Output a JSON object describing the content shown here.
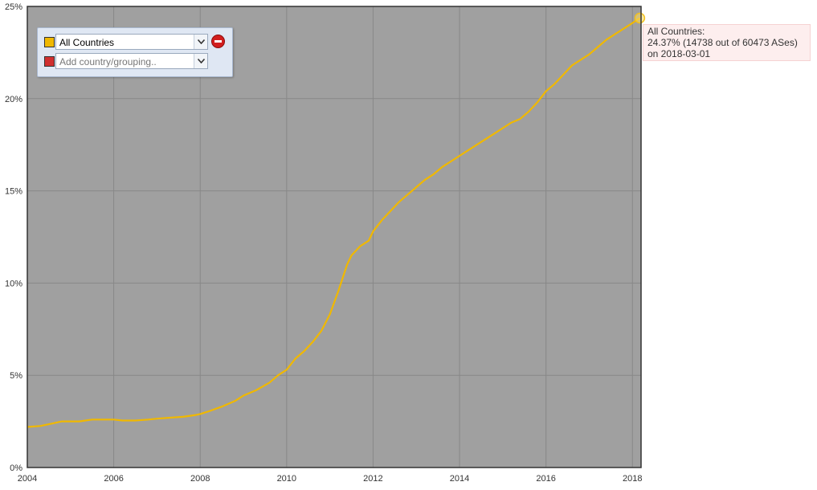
{
  "chart_data": {
    "type": "line",
    "title": "",
    "xlabel": "",
    "ylabel": "",
    "xlim": [
      2004.0,
      2018.2
    ],
    "ylim": [
      0,
      25
    ],
    "x_ticks": [
      2004,
      2006,
      2008,
      2010,
      2012,
      2014,
      2016,
      2018
    ],
    "x_tick_labels": [
      "2004",
      "2006",
      "2008",
      "2010",
      "2012",
      "2014",
      "2016",
      "2018"
    ],
    "y_ticks": [
      0,
      5,
      10,
      15,
      20,
      25
    ],
    "y_tick_labels": [
      "0%",
      "5%",
      "10%",
      "15%",
      "20%",
      "25%"
    ],
    "grid": true,
    "series": [
      {
        "color": "#f0b800",
        "x": [
          2004.0,
          2004.3,
          2004.6,
          2004.8,
          2005.0,
          2005.2,
          2005.5,
          2005.7,
          2006.0,
          2006.2,
          2006.5,
          2006.8,
          2007.0,
          2007.3,
          2007.6,
          2007.9,
          2008.0,
          2008.2,
          2008.5,
          2008.8,
          2009.0,
          2009.3,
          2009.6,
          2009.8,
          2010.0,
          2010.2,
          2010.4,
          2010.6,
          2010.8,
          2011.0,
          2011.2,
          2011.4,
          2011.5,
          2011.7,
          2011.9,
          2012.0,
          2012.2,
          2012.4,
          2012.6,
          2012.8,
          2013.0,
          2013.2,
          2013.4,
          2013.6,
          2013.8,
          2014.0,
          2014.2,
          2014.4,
          2014.6,
          2014.8,
          2015.0,
          2015.2,
          2015.4,
          2015.6,
          2015.8,
          2016.0,
          2016.2,
          2016.4,
          2016.6,
          2016.8,
          2017.0,
          2017.2,
          2017.4,
          2017.6,
          2017.8,
          2018.0,
          2018.17
        ],
        "y": [
          2.2,
          2.25,
          2.4,
          2.5,
          2.5,
          2.5,
          2.6,
          2.6,
          2.6,
          2.55,
          2.55,
          2.6,
          2.65,
          2.7,
          2.75,
          2.85,
          2.9,
          3.05,
          3.3,
          3.6,
          3.9,
          4.2,
          4.6,
          5.0,
          5.3,
          5.9,
          6.3,
          6.8,
          7.4,
          8.3,
          9.6,
          11.0,
          11.5,
          12.0,
          12.3,
          12.8,
          13.4,
          13.9,
          14.4,
          14.8,
          15.2,
          15.6,
          15.9,
          16.3,
          16.6,
          16.9,
          17.2,
          17.5,
          17.8,
          18.1,
          18.4,
          18.7,
          18.9,
          19.3,
          19.8,
          20.4,
          20.8,
          21.3,
          21.8,
          22.1,
          22.4,
          22.8,
          23.2,
          23.5,
          23.8,
          24.1,
          24.37
        ]
      }
    ],
    "highlight_point": {
      "x": 2018.17,
      "y": 24.37
    }
  },
  "selector": {
    "rows": [
      {
        "label": "All Countries",
        "placeholder": "",
        "swatch_color": "#f0b800"
      },
      {
        "label": "",
        "placeholder": "Add country/grouping..",
        "swatch_color": "#d03030"
      }
    ]
  },
  "tooltip": {
    "line1": "All Countries:",
    "line2": "24.37% (14738 out of 60473 ASes)",
    "line3": "on 2018-03-01"
  },
  "colors": {
    "plot_background": "#a0a0a0",
    "grid": "#888888",
    "line": "#f0b800"
  }
}
